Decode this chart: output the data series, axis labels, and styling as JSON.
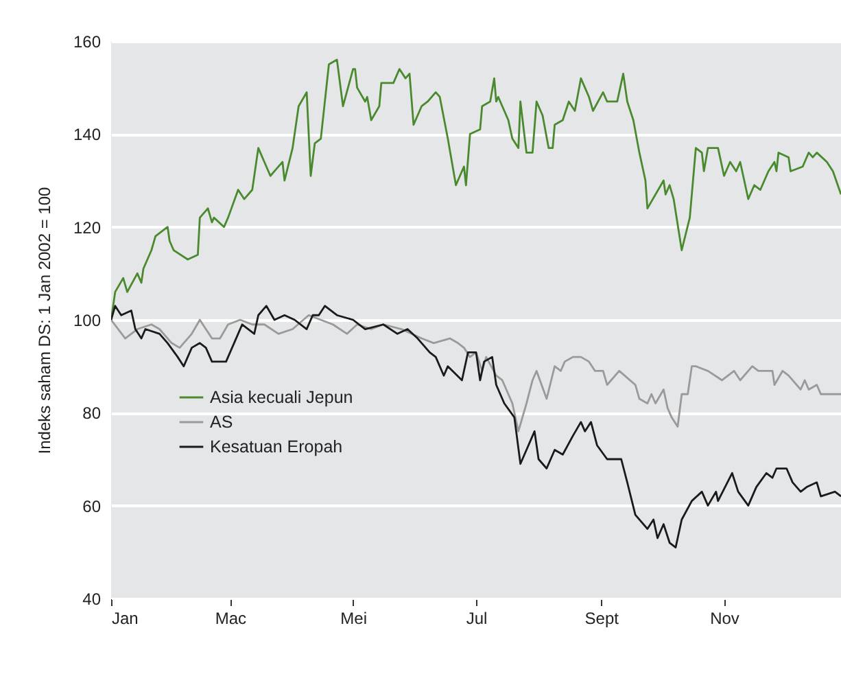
{
  "chart_data": {
    "type": "line",
    "ylabel": "Indeks saham DS: 1 Jan 2002 = 100",
    "xlim": [
      "2002-01-01",
      "2002-12-29"
    ],
    "xticks": [
      {
        "value": "2002-01-01",
        "label": "Jan"
      },
      {
        "value": "2002-03-01",
        "label": "Mac"
      },
      {
        "value": "2002-05-01",
        "label": "Mei"
      },
      {
        "value": "2002-07-01",
        "label": "Jul"
      },
      {
        "value": "2002-09-01",
        "label": "Sept"
      },
      {
        "value": "2002-11-01",
        "label": "Nov"
      }
    ],
    "ylim": [
      40,
      160
    ],
    "yticks": [
      40,
      60,
      80,
      100,
      120,
      140,
      160
    ],
    "grid": "y",
    "legend": "left",
    "line_style": "solid",
    "series": [
      {
        "name": "Asia kecuali Jepun",
        "color": "#4a8a2e",
        "x": [
          "2002-01-01",
          "2002-01-03",
          "2002-01-07",
          "2002-01-09",
          "2002-01-14",
          "2002-01-16",
          "2002-01-17",
          "2002-01-21",
          "2002-01-23",
          "2002-01-29",
          "2002-01-30",
          "2002-02-01",
          "2002-02-08",
          "2002-02-13",
          "2002-02-14",
          "2002-02-18",
          "2002-02-20",
          "2002-02-21",
          "2002-02-26",
          "2002-02-28",
          "2002-03-05",
          "2002-03-08",
          "2002-03-12",
          "2002-03-15",
          "2002-03-18",
          "2002-03-21",
          "2002-03-25",
          "2002-03-27",
          "2002-03-28",
          "2002-04-01",
          "2002-04-04",
          "2002-04-08",
          "2002-04-10",
          "2002-04-12",
          "2002-04-15",
          "2002-04-19",
          "2002-04-23",
          "2002-04-26",
          "2002-05-01",
          "2002-05-02",
          "2002-05-03",
          "2002-05-07",
          "2002-05-08",
          "2002-05-10",
          "2002-05-14",
          "2002-05-15",
          "2002-05-21",
          "2002-05-24",
          "2002-05-27",
          "2002-05-29",
          "2002-05-31",
          "2002-06-04",
          "2002-06-07",
          "2002-06-11",
          "2002-06-13",
          "2002-06-17",
          "2002-06-21",
          "2002-06-25",
          "2002-06-26",
          "2002-06-28",
          "2002-07-03",
          "2002-07-04",
          "2002-07-08",
          "2002-07-10",
          "2002-07-11",
          "2002-07-12",
          "2002-07-17",
          "2002-07-19",
          "2002-07-22",
          "2002-07-23",
          "2002-07-26",
          "2002-07-29",
          "2002-07-31",
          "2002-08-03",
          "2002-08-06",
          "2002-08-08",
          "2002-08-09",
          "2002-08-13",
          "2002-08-16",
          "2002-08-19",
          "2002-08-22",
          "2002-08-26",
          "2002-08-28",
          "2002-09-02",
          "2002-09-04",
          "2002-09-09",
          "2002-09-12",
          "2002-09-14",
          "2002-09-17",
          "2002-09-20",
          "2002-09-23",
          "2002-09-24",
          "2002-10-02",
          "2002-10-03",
          "2002-10-05",
          "2002-10-07",
          "2002-10-11",
          "2002-10-15",
          "2002-10-18",
          "2002-10-21",
          "2002-10-22",
          "2002-10-24",
          "2002-10-29",
          "2002-11-01",
          "2002-11-04",
          "2002-11-07",
          "2002-11-09",
          "2002-11-13",
          "2002-11-16",
          "2002-11-19",
          "2002-11-23",
          "2002-11-26",
          "2002-11-27",
          "2002-11-28",
          "2002-12-03",
          "2002-12-04",
          "2002-12-10",
          "2002-12-13",
          "2002-12-15",
          "2002-12-17",
          "2002-12-22",
          "2002-12-25",
          "2002-12-29"
        ],
        "values": [
          100,
          106,
          109,
          106,
          110,
          108,
          111,
          115,
          118,
          120,
          117,
          115,
          113,
          114,
          122,
          124,
          121,
          122,
          120,
          122,
          128,
          126,
          128,
          137,
          134,
          131,
          133,
          134,
          130,
          137,
          146,
          149,
          131,
          138,
          139,
          155,
          156,
          146,
          154,
          154,
          150,
          147,
          148,
          143,
          146,
          151,
          151,
          154,
          152,
          153,
          142,
          146,
          147,
          149,
          148,
          139,
          129,
          133,
          129,
          140,
          141,
          146,
          147,
          152,
          147,
          148,
          143,
          139,
          137,
          147,
          136,
          136,
          147,
          144,
          137,
          137,
          142,
          143,
          147,
          145,
          152,
          148,
          145,
          149,
          147,
          147,
          153,
          147,
          143,
          136,
          130,
          124,
          130,
          127,
          129,
          126,
          115,
          122,
          137,
          136,
          132,
          137,
          137,
          131,
          134,
          132,
          134,
          126,
          129,
          128,
          132,
          134,
          132,
          136,
          135,
          132,
          133,
          136,
          135,
          136,
          134,
          132,
          127
        ]
      },
      {
        "name": "AS",
        "color": "#9a9a9a",
        "x": [
          "2002-01-01",
          "2002-01-08",
          "2002-01-14",
          "2002-01-21",
          "2002-01-25",
          "2002-01-31",
          "2002-02-04",
          "2002-02-10",
          "2002-02-14",
          "2002-02-17",
          "2002-02-20",
          "2002-02-24",
          "2002-02-28",
          "2002-03-06",
          "2002-03-12",
          "2002-03-18",
          "2002-03-25",
          "2002-04-01",
          "2002-04-09",
          "2002-04-15",
          "2002-04-21",
          "2002-04-28",
          "2002-05-03",
          "2002-05-10",
          "2002-05-16",
          "2002-05-25",
          "2002-06-04",
          "2002-06-10",
          "2002-06-18",
          "2002-06-22",
          "2002-06-25",
          "2002-06-28",
          "2002-07-01",
          "2002-07-04",
          "2002-07-06",
          "2002-07-11",
          "2002-07-14",
          "2002-07-19",
          "2002-07-22",
          "2002-07-26",
          "2002-07-29",
          "2002-07-31",
          "2002-08-05",
          "2002-08-09",
          "2002-08-12",
          "2002-08-14",
          "2002-08-18",
          "2002-08-22",
          "2002-08-26",
          "2002-08-29",
          "2002-09-02",
          "2002-09-04",
          "2002-09-10",
          "2002-09-18",
          "2002-09-20",
          "2002-09-24",
          "2002-09-26",
          "2002-09-28",
          "2002-10-02",
          "2002-10-04",
          "2002-10-06",
          "2002-10-09",
          "2002-10-11",
          "2002-10-14",
          "2002-10-16",
          "2002-10-18",
          "2002-10-24",
          "2002-10-31",
          "2002-11-06",
          "2002-11-09",
          "2002-11-15",
          "2002-11-18",
          "2002-11-25",
          "2002-11-26",
          "2002-11-30",
          "2002-12-03",
          "2002-12-09",
          "2002-12-11",
          "2002-12-13",
          "2002-12-17",
          "2002-12-19",
          "2002-12-26",
          "2002-12-29"
        ],
        "values": [
          100,
          96,
          98,
          99,
          98,
          95,
          94,
          97,
          100,
          98,
          96,
          96,
          99,
          100,
          99,
          99,
          97,
          98,
          101,
          100,
          99,
          97,
          99,
          98,
          99,
          98,
          96,
          95,
          96,
          95,
          94,
          92,
          93,
          89,
          92,
          88,
          87,
          82,
          76,
          82,
          87,
          89,
          83,
          90,
          89,
          91,
          92,
          92,
          91,
          89,
          89,
          86,
          89,
          86,
          83,
          82,
          84,
          82,
          85,
          81,
          79,
          77,
          84,
          84,
          90,
          90,
          89,
          87,
          89,
          87,
          90,
          89,
          89,
          86,
          89,
          88,
          85,
          87,
          85,
          86,
          84,
          84,
          84
        ]
      },
      {
        "name": "Kesatuan Eropah",
        "color": "#1a1a1a",
        "x": [
          "2002-01-01",
          "2002-01-03",
          "2002-01-06",
          "2002-01-11",
          "2002-01-13",
          "2002-01-16",
          "2002-01-18",
          "2002-01-25",
          "2002-01-29",
          "2002-02-03",
          "2002-02-06",
          "2002-02-10",
          "2002-02-14",
          "2002-02-17",
          "2002-02-20",
          "2002-02-27",
          "2002-03-03",
          "2002-03-07",
          "2002-03-13",
          "2002-03-15",
          "2002-03-19",
          "2002-03-23",
          "2002-03-28",
          "2002-04-02",
          "2002-04-08",
          "2002-04-11",
          "2002-04-14",
          "2002-04-17",
          "2002-04-23",
          "2002-05-01",
          "2002-05-07",
          "2002-05-16",
          "2002-05-23",
          "2002-05-28",
          "2002-06-02",
          "2002-06-08",
          "2002-06-11",
          "2002-06-15",
          "2002-06-17",
          "2002-06-24",
          "2002-06-27",
          "2002-07-01",
          "2002-07-03",
          "2002-07-05",
          "2002-07-09",
          "2002-07-11",
          "2002-07-15",
          "2002-07-20",
          "2002-07-23",
          "2002-07-26",
          "2002-07-30",
          "2002-08-01",
          "2002-08-05",
          "2002-08-09",
          "2002-08-13",
          "2002-08-18",
          "2002-08-22",
          "2002-08-24",
          "2002-08-27",
          "2002-08-30",
          "2002-09-04",
          "2002-09-08",
          "2002-09-11",
          "2002-09-14",
          "2002-09-18",
          "2002-09-24",
          "2002-09-27",
          "2002-09-29",
          "2002-10-02",
          "2002-10-05",
          "2002-10-08",
          "2002-10-11",
          "2002-10-16",
          "2002-10-21",
          "2002-10-24",
          "2002-10-28",
          "2002-10-29",
          "2002-11-05",
          "2002-11-08",
          "2002-11-13",
          "2002-11-17",
          "2002-11-22",
          "2002-11-25",
          "2002-11-27",
          "2002-12-02",
          "2002-12-05",
          "2002-12-09",
          "2002-12-12",
          "2002-12-17",
          "2002-12-19",
          "2002-12-26",
          "2002-12-29"
        ],
        "values": [
          100,
          103,
          101,
          102,
          98,
          96,
          98,
          97,
          95,
          92,
          90,
          94,
          95,
          94,
          91,
          91,
          95,
          99,
          97,
          101,
          103,
          100,
          101,
          100,
          98,
          101,
          101,
          103,
          101,
          100,
          98,
          99,
          97,
          98,
          96,
          93,
          92,
          88,
          90,
          87,
          93,
          93,
          87,
          91,
          92,
          86,
          82,
          79,
          69,
          72,
          76,
          70,
          68,
          72,
          71,
          75,
          78,
          76,
          78,
          73,
          70,
          70,
          70,
          65,
          58,
          55,
          57,
          53,
          56,
          52,
          51,
          57,
          61,
          63,
          60,
          63,
          61,
          67,
          63,
          60,
          64,
          67,
          66,
          68,
          68,
          65,
          63,
          64,
          65,
          62,
          63,
          62
        ]
      }
    ]
  }
}
